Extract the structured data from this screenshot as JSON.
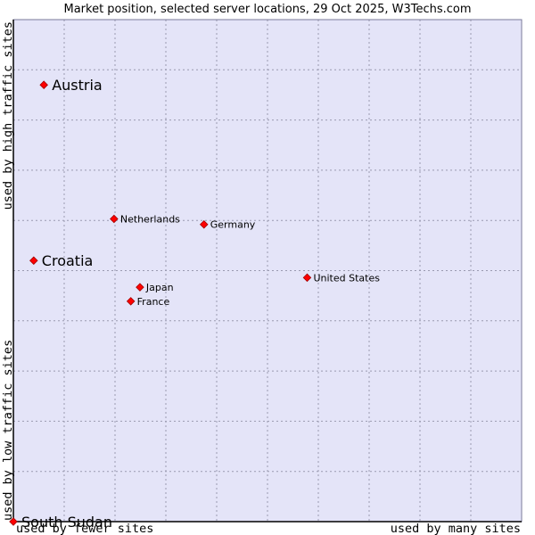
{
  "chart_data": {
    "type": "scatter",
    "title": "Market position, selected server locations, 29 Oct 2025, W3Techs.com",
    "xlabel_left": "used by fewer sites",
    "xlabel_right": "used by many sites",
    "ylabel_bottom": "used by low traffic sites",
    "ylabel_top": "used by high traffic sites",
    "xlim": [
      0,
      100
    ],
    "ylim": [
      0,
      100
    ],
    "grid": true,
    "colors": {
      "plot_background": "#e4e4f8",
      "point": "#ff0000",
      "point_edge": "#a00000",
      "axis": "#000000"
    },
    "points": [
      {
        "label": "Austria",
        "x": 6,
        "y": 87,
        "emphasis": "large"
      },
      {
        "label": "Croatia",
        "x": 4,
        "y": 52,
        "emphasis": "large"
      },
      {
        "label": "South Sudan",
        "x": 0,
        "y": 0,
        "emphasis": "large"
      },
      {
        "label": "Netherlands",
        "x": 19.8,
        "y": 60.3,
        "emphasis": "normal"
      },
      {
        "label": "Germany",
        "x": 37.5,
        "y": 59.2,
        "emphasis": "normal"
      },
      {
        "label": "United States",
        "x": 57.8,
        "y": 48.6,
        "emphasis": "normal"
      },
      {
        "label": "Japan",
        "x": 24.9,
        "y": 46.7,
        "emphasis": "normal"
      },
      {
        "label": "France",
        "x": 23.1,
        "y": 43.9,
        "emphasis": "normal"
      }
    ]
  }
}
